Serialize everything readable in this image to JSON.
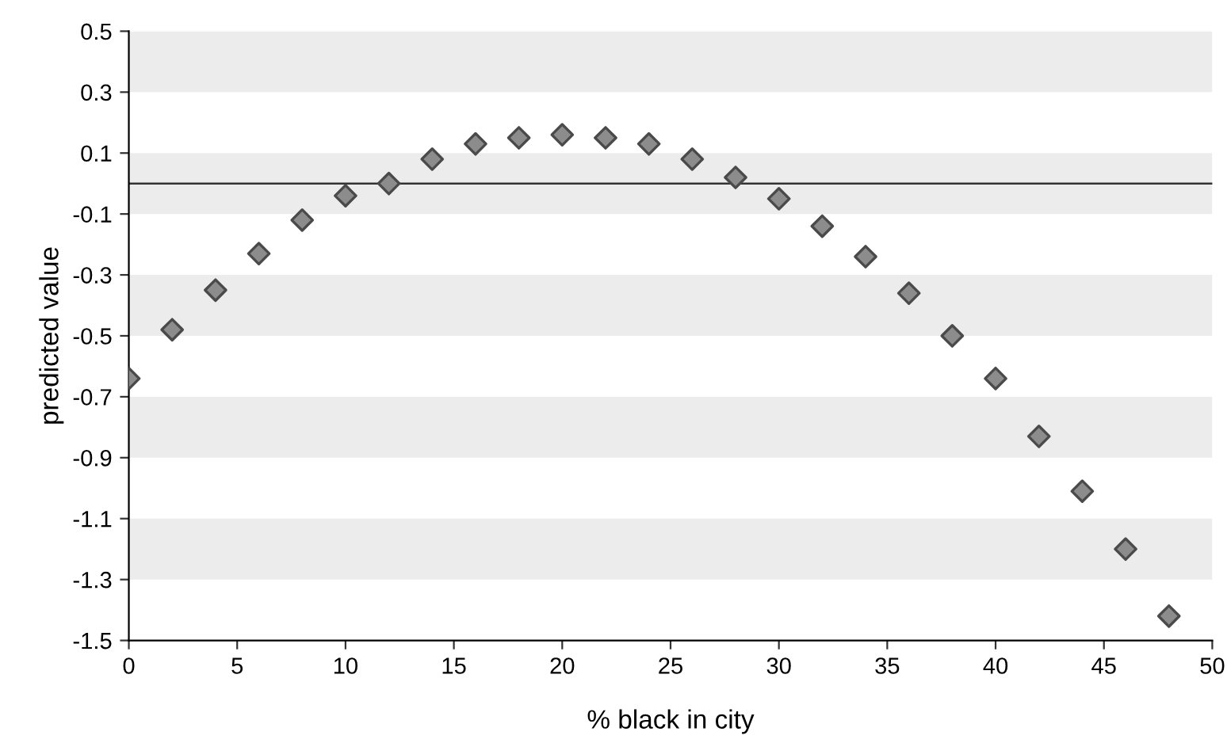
{
  "chart_data": {
    "type": "scatter",
    "xlabel": "% black in city",
    "ylabel": "predicted value",
    "x": [
      0,
      2,
      4,
      6,
      8,
      10,
      12,
      14,
      16,
      18,
      20,
      22,
      24,
      26,
      28,
      30,
      32,
      34,
      36,
      38,
      40,
      42,
      44,
      46,
      48
    ],
    "series": [
      {
        "color": "#8c8c8c",
        "values": [
          -0.64,
          -0.48,
          -0.35,
          -0.23,
          -0.12,
          -0.04,
          0.0,
          0.08,
          0.13,
          0.15,
          0.16,
          0.15,
          0.13,
          0.08,
          0.02,
          -0.05,
          -0.14,
          -0.24,
          -0.36,
          -0.5,
          -0.64,
          -0.83,
          -1.01,
          -1.2,
          -1.42
        ]
      }
    ],
    "marker": "diamond",
    "xlim": [
      0,
      50
    ],
    "xticks": [
      0,
      5,
      10,
      15,
      20,
      25,
      30,
      35,
      40,
      45,
      50
    ],
    "ylim": [
      -1.5,
      0.5
    ],
    "yticks": [
      -1.5,
      -1.3,
      -1.1,
      -0.9,
      -0.7,
      -0.5,
      -0.3,
      -0.1,
      0.1,
      0.3,
      0.5
    ],
    "ref_lines": [
      {
        "axis": "y",
        "value": 0,
        "color": "#333333"
      }
    ],
    "bands": [
      {
        "axis": "y",
        "from": 0.3,
        "to": 0.5,
        "color": "#ececec"
      },
      {
        "axis": "y",
        "from": -0.1,
        "to": 0.1,
        "color": "#ececec"
      },
      {
        "axis": "y",
        "from": -0.5,
        "to": -0.3,
        "color": "#ececec"
      },
      {
        "axis": "y",
        "from": -0.9,
        "to": -0.7,
        "color": "#ececec"
      },
      {
        "axis": "y",
        "from": -1.3,
        "to": -1.1,
        "color": "#ececec"
      }
    ],
    "grid": false,
    "legend": false
  }
}
